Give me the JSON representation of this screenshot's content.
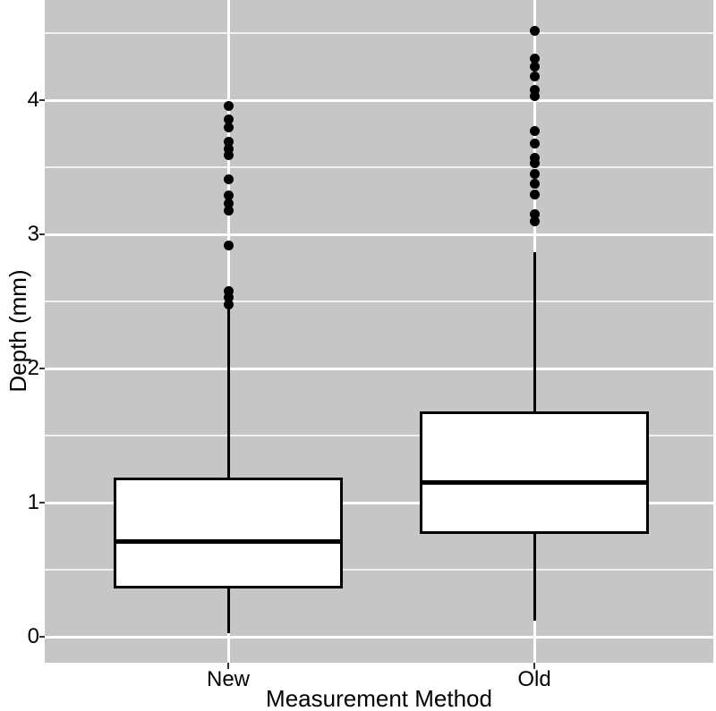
{
  "chart_data": {
    "type": "boxplot",
    "title": "",
    "xlabel": "Measurement Method",
    "ylabel": "Depth (mm)",
    "categories": [
      "New",
      "Old"
    ],
    "ytick_labels": [
      "0",
      "1",
      "2",
      "3",
      "4"
    ],
    "ytick_values": [
      0,
      1,
      2,
      3,
      4
    ],
    "grid_major": [
      0,
      1,
      2,
      3,
      4
    ],
    "grid_minor": [
      0.5,
      1.5,
      2.5,
      3.5,
      4.5
    ],
    "ylim": [
      -0.19,
      4.75
    ],
    "grid": "on",
    "legend": "none",
    "series": [
      {
        "name": "New",
        "whisker_low": 0.03,
        "q1": 0.36,
        "median": 0.71,
        "q3": 1.19,
        "whisker_high": 2.45,
        "outliers": [
          2.48,
          2.53,
          2.58,
          2.92,
          3.18,
          3.23,
          3.29,
          3.41,
          3.59,
          3.64,
          3.69,
          3.8,
          3.86,
          3.96
        ]
      },
      {
        "name": "Old",
        "whisker_low": 0.12,
        "q1": 0.77,
        "median": 1.15,
        "q3": 1.68,
        "whisker_high": 2.87,
        "outliers": [
          3.1,
          3.15,
          3.3,
          3.38,
          3.45,
          3.53,
          3.57,
          3.68,
          3.77,
          4.03,
          4.08,
          4.18,
          4.25,
          4.31,
          4.52
        ]
      }
    ],
    "colors": {
      "panel_bg": "#c6c6c6",
      "grid_major": "#ffffff",
      "grid_minor": "#f2f2f2",
      "box_fill": "#ffffff",
      "box_stroke": "#000000",
      "median": "#000000",
      "whisker": "#000000",
      "outlier": "#000000",
      "text": "#000000",
      "tick_mark": "#333333",
      "background": "#ffffff"
    }
  }
}
